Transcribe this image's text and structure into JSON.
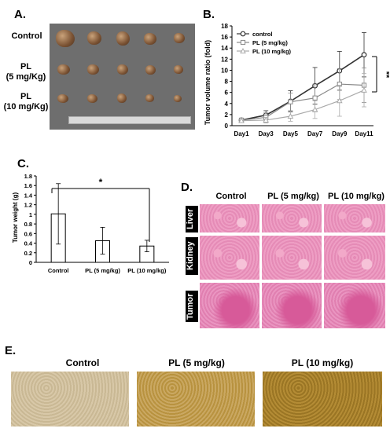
{
  "panels": {
    "a": {
      "label": "A.",
      "rows": [
        {
          "name": "Control",
          "line2": ""
        },
        {
          "name": "PL",
          "line2": "(5 mg/Kg)"
        },
        {
          "name": "PL",
          "line2": "(10 mg/Kg)"
        }
      ]
    },
    "b": {
      "label": "B."
    },
    "c": {
      "label": "C."
    },
    "d": {
      "label": "D.",
      "columns": [
        "Control",
        "PL (5 mg/kg)",
        "PL (10 mg/kg)"
      ],
      "rows": [
        "Liver",
        "Kidney",
        "Tumor"
      ]
    },
    "e": {
      "label": "E.",
      "columns": [
        "Control",
        "PL (5 mg/kg)",
        "PL (10 mg/kg)"
      ]
    }
  },
  "chart_data": [
    {
      "type": "line",
      "panel": "B",
      "ylabel": "Tumor volume ratio (fold)",
      "xlabel": "",
      "categories": [
        "Day1",
        "Day3",
        "Day5",
        "Day7",
        "Day9",
        "Day11"
      ],
      "ylim": [
        0,
        18
      ],
      "yticks": [
        0,
        2,
        4,
        6,
        8,
        10,
        12,
        14,
        16,
        18
      ],
      "legend": "top-left",
      "series": [
        {
          "name": "control",
          "values": [
            1.0,
            1.9,
            4.4,
            7.2,
            9.9,
            12.8
          ],
          "errors": [
            0.3,
            0.8,
            1.9,
            3.3,
            3.5,
            4.0
          ],
          "marker": "circle",
          "color": "#333333"
        },
        {
          "name": "PL (5 mg/kg)",
          "values": [
            1.0,
            1.5,
            4.3,
            5.0,
            7.5,
            7.3
          ],
          "errors": [
            0.3,
            0.8,
            1.6,
            2.5,
            2.8,
            3.1
          ],
          "marker": "square",
          "color": "#888888"
        },
        {
          "name": "PL (10 mg/kg)",
          "values": [
            0.9,
            1.0,
            1.7,
            2.9,
            4.5,
            6.4
          ],
          "errors": [
            0.2,
            0.5,
            0.9,
            1.6,
            2.8,
            3.0
          ],
          "marker": "triangle",
          "color": "#aaaaaa"
        }
      ],
      "annotations": [
        "**"
      ]
    },
    {
      "type": "bar",
      "panel": "C",
      "ylabel": "Tumor weight (g)",
      "xlabel": "",
      "categories": [
        "Control",
        "PL (5 mg/kg)",
        "PL (10 mg/kg)"
      ],
      "values": [
        1.01,
        0.45,
        0.34
      ],
      "errors": [
        0.63,
        0.28,
        0.12
      ],
      "ylim": [
        0,
        1.8
      ],
      "yticks": [
        "0",
        "0.2",
        "0.4",
        "0.6",
        "0.8",
        "1",
        "1.2",
        "1.4",
        "1.6",
        "1.8"
      ],
      "annotations": [
        "*"
      ]
    }
  ]
}
